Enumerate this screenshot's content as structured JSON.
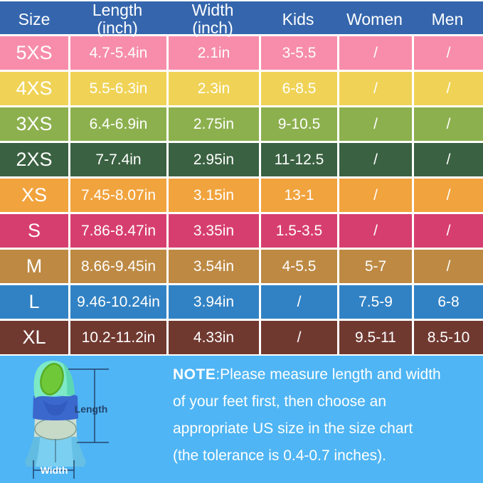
{
  "table": {
    "header": {
      "bg": "#3566ad",
      "columns": [
        "Size",
        "Length\n(inch)",
        "Width\n(inch)",
        "Kids",
        "Women",
        "Men"
      ]
    }
  },
  "chart_data": {
    "type": "table",
    "columns": [
      "Size",
      "Length (inch)",
      "Width (inch)",
      "Kids",
      "Women",
      "Men"
    ],
    "rows": [
      [
        "5XS",
        "4.7-5.4in",
        "2.1in",
        "3-5.5",
        "/",
        "/"
      ],
      [
        "4XS",
        "5.5-6.3in",
        "2.3in",
        "6-8.5",
        "/",
        "/"
      ],
      [
        "3XS",
        "6.4-6.9in",
        "2.75in",
        "9-10.5",
        "/",
        "/"
      ],
      [
        "2XS",
        "7-7.4in",
        "2.95in",
        "11-12.5",
        "/",
        "/"
      ],
      [
        "XS",
        "7.45-8.07in",
        "3.15in",
        "13-1",
        "/",
        "/"
      ],
      [
        "S",
        "7.86-8.47in",
        "3.35in",
        "1.5-3.5",
        "/",
        "/"
      ],
      [
        "M",
        "8.66-9.45in",
        "3.54in",
        "4-5.5",
        "5-7",
        "/"
      ],
      [
        "L",
        "9.46-10.24in",
        "3.94in",
        "/",
        "7.5-9",
        "6-8"
      ],
      [
        "XL",
        "10.2-11.2in",
        "4.33in",
        "/",
        "9.5-11",
        "8.5-10"
      ]
    ],
    "row_colors": [
      "#f78daa",
      "#f0d356",
      "#8cb04e",
      "#3a6141",
      "#f1a33d",
      "#d73e70",
      "#bd8943",
      "#3182c4",
      "#703930"
    ]
  },
  "note": {
    "bg": "#4fb5f4",
    "prefix": "NOTE",
    "lines": [
      ":Please measure length and width",
      "of your feet first, then choose an",
      "appropriate US size in the size chart",
      "(the tolerance is 0.4-0.7 inches)."
    ],
    "length_label": "Length",
    "width_label": "Width"
  }
}
